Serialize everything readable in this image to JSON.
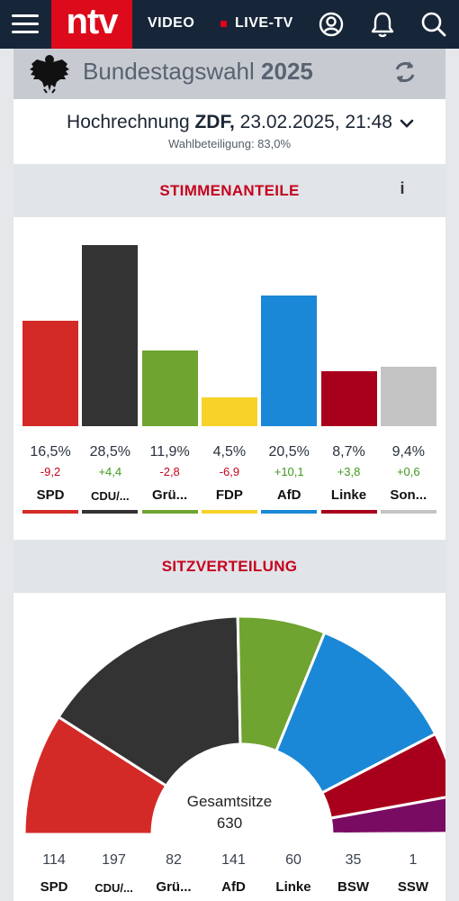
{
  "nav": {
    "logo": "ntv",
    "video": "VIDEO",
    "live": "LIVE-TV"
  },
  "election": {
    "title_prefix": "Bundestagswahl",
    "title_year": "2025"
  },
  "projection": {
    "label": "Hochrechnung",
    "source": "ZDF,",
    "datetime": "23.02.2025, 21:48",
    "turnout": "Wahlbeteiligung: 83,0%"
  },
  "sections": {
    "votes_title": "STIMMENANTEILE",
    "info": "i",
    "seats_title": "SITZVERTEILUNG"
  },
  "colors": {
    "accent": "#c5031f",
    "header_bg": "#162638",
    "logo_bg": "#dc0a1a"
  },
  "chart_data": [
    {
      "type": "bar",
      "title": "STIMMENANTEILE",
      "categories": [
        "SPD",
        "CDU/...",
        "Grü...",
        "FDP",
        "AfD",
        "Linke",
        "Son..."
      ],
      "values": [
        16.5,
        28.5,
        11.9,
        4.5,
        20.5,
        8.7,
        9.4
      ],
      "value_labels": [
        "16,5%",
        "28,5%",
        "11,9%",
        "4,5%",
        "20,5%",
        "8,7%",
        "9,4%"
      ],
      "changes": [
        -9.2,
        4.4,
        -2.8,
        -6.9,
        10.1,
        3.8,
        0.6
      ],
      "change_labels": [
        "-9,2",
        "+4,4",
        "-2,8",
        "-6,9",
        "+10,1",
        "+3,8",
        "+0,6"
      ],
      "colors": [
        "#d42a27",
        "#333333",
        "#6fa431",
        "#f7d32a",
        "#1a88d6",
        "#a8001c",
        "#c4c4c4"
      ],
      "ylim": [
        0,
        30
      ]
    },
    {
      "type": "pie",
      "title": "SITZVERTEILUNG",
      "style": "parliament-half-donut",
      "categories": [
        "SPD",
        "CDU/...",
        "Grü...",
        "AfD",
        "Linke",
        "BSW",
        "SSW"
      ],
      "values": [
        114,
        197,
        82,
        141,
        60,
        35,
        1
      ],
      "colors": [
        "#d42a27",
        "#333333",
        "#6fa431",
        "#1a88d6",
        "#a8001c",
        "#790b63",
        "#1b3a8f"
      ],
      "total_label": "Gesamtsitze",
      "total": "630"
    }
  ]
}
